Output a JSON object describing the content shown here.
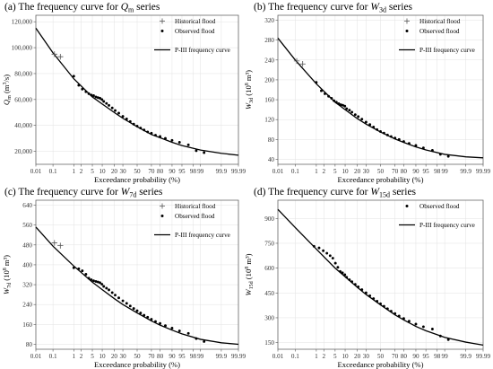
{
  "chart_data": [
    {
      "type": "scatter",
      "title": "(a) The frequency curve for Qₘ series",
      "title_main": "(a) The frequency curve for ",
      "title_sym": "Q",
      "title_sub": "m",
      "title_sup": "",
      "title_tail": " series",
      "xlabel": "Exceedance probability (%)",
      "ylabel_sym": "Q",
      "ylabel_sub": "m",
      "ylabel_tail": " (m",
      "ylabel_sup": "3",
      "ylabel_end": "/s)",
      "ylim": [
        10000,
        125000
      ],
      "yticks": [
        20000,
        40000,
        60000,
        80000,
        100000,
        120000
      ],
      "ytick_labels": [
        "20,000",
        "40,000",
        "60,000",
        "80,000",
        "100,000",
        "120,000"
      ],
      "legend": [
        "Historical flood",
        "Observed flood",
        "P-III frequency curve"
      ],
      "legend_position": "top-right",
      "historical": [
        {
          "p": 0.12,
          "v": 95000
        },
        {
          "p": 0.24,
          "v": 93000
        }
      ],
      "observed": [
        {
          "p": 1.0,
          "v": 78000
        },
        {
          "p": 1.6,
          "v": 71000
        },
        {
          "p": 2.2,
          "v": 68000
        },
        {
          "p": 3.0,
          "v": 66000
        },
        {
          "p": 3.8,
          "v": 64500
        },
        {
          "p": 4.6,
          "v": 63500
        },
        {
          "p": 5.5,
          "v": 63000
        },
        {
          "p": 6.5,
          "v": 62000
        },
        {
          "p": 7.5,
          "v": 61500
        },
        {
          "p": 8.6,
          "v": 61000
        },
        {
          "p": 9.8,
          "v": 60000
        },
        {
          "p": 11,
          "v": 58500
        },
        {
          "p": 13,
          "v": 57000
        },
        {
          "p": 15,
          "v": 55500
        },
        {
          "p": 18,
          "v": 53500
        },
        {
          "p": 21,
          "v": 51500
        },
        {
          "p": 25,
          "v": 49500
        },
        {
          "p": 30,
          "v": 47000
        },
        {
          "p": 35,
          "v": 45000
        },
        {
          "p": 40,
          "v": 43000
        },
        {
          "p": 45,
          "v": 41000
        },
        {
          "p": 50,
          "v": 39500
        },
        {
          "p": 55,
          "v": 38000
        },
        {
          "p": 60,
          "v": 36500
        },
        {
          "p": 65,
          "v": 35000
        },
        {
          "p": 70,
          "v": 34000
        },
        {
          "p": 75,
          "v": 32500
        },
        {
          "p": 80,
          "v": 31500
        },
        {
          "p": 85,
          "v": 30000
        },
        {
          "p": 90,
          "v": 28500
        },
        {
          "p": 94,
          "v": 27000
        },
        {
          "p": 97,
          "v": 25000
        },
        {
          "p": 98.5,
          "v": 20500
        },
        {
          "p": 99.3,
          "v": 19000
        }
      ],
      "curve": [
        {
          "p": 0.01,
          "v": 115000
        },
        {
          "p": 0.1,
          "v": 96000
        },
        {
          "p": 1,
          "v": 76000
        },
        {
          "p": 5,
          "v": 62000
        },
        {
          "p": 10,
          "v": 56500
        },
        {
          "p": 20,
          "v": 50000
        },
        {
          "p": 30,
          "v": 45500
        },
        {
          "p": 50,
          "v": 39000
        },
        {
          "p": 70,
          "v": 33000
        },
        {
          "p": 80,
          "v": 30500
        },
        {
          "p": 90,
          "v": 27000
        },
        {
          "p": 95,
          "v": 24500
        },
        {
          "p": 99,
          "v": 21000
        },
        {
          "p": 99.9,
          "v": 18500
        },
        {
          "p": 99.99,
          "v": 17000
        }
      ]
    },
    {
      "type": "scatter",
      "title": "(b) The frequency curve for W₃d series",
      "title_main": "(b) The frequency curve for ",
      "title_sym": "W",
      "title_sub": "3d",
      "title_tail": " series",
      "xlabel": "Exceedance probability (%)",
      "ylabel_sym": "W",
      "ylabel_sub": "3d",
      "ylabel_tail": " (10",
      "ylabel_sup": "8",
      "ylabel_end": " m³)",
      "ylim": [
        30,
        330
      ],
      "yticks": [
        40,
        80,
        120,
        160,
        200,
        240,
        280,
        320
      ],
      "ytick_labels": [
        "40",
        "80",
        "120",
        "160",
        "200",
        "240",
        "280",
        "320"
      ],
      "legend": [
        "Historical flood",
        "Observed flood",
        "P-III frequency curve"
      ],
      "legend_position": "top-right",
      "historical": [
        {
          "p": 0.12,
          "v": 238
        },
        {
          "p": 0.24,
          "v": 232
        }
      ],
      "observed": [
        {
          "p": 1.0,
          "v": 195
        },
        {
          "p": 1.6,
          "v": 178
        },
        {
          "p": 2.2,
          "v": 172
        },
        {
          "p": 3.0,
          "v": 167
        },
        {
          "p": 3.8,
          "v": 163
        },
        {
          "p": 4.6,
          "v": 158
        },
        {
          "p": 5.5,
          "v": 155
        },
        {
          "p": 6.5,
          "v": 152
        },
        {
          "p": 7.5,
          "v": 150
        },
        {
          "p": 8.6,
          "v": 149
        },
        {
          "p": 9.8,
          "v": 147
        },
        {
          "p": 11,
          "v": 142
        },
        {
          "p": 13,
          "v": 139
        },
        {
          "p": 15,
          "v": 135
        },
        {
          "p": 18,
          "v": 130
        },
        {
          "p": 21,
          "v": 126
        },
        {
          "p": 25,
          "v": 121
        },
        {
          "p": 30,
          "v": 115
        },
        {
          "p": 35,
          "v": 110
        },
        {
          "p": 40,
          "v": 105
        },
        {
          "p": 45,
          "v": 100
        },
        {
          "p": 50,
          "v": 96
        },
        {
          "p": 55,
          "v": 93
        },
        {
          "p": 60,
          "v": 89
        },
        {
          "p": 65,
          "v": 86
        },
        {
          "p": 70,
          "v": 83
        },
        {
          "p": 75,
          "v": 80
        },
        {
          "p": 80,
          "v": 76
        },
        {
          "p": 85,
          "v": 72
        },
        {
          "p": 90,
          "v": 68
        },
        {
          "p": 94,
          "v": 63
        },
        {
          "p": 97,
          "v": 58
        },
        {
          "p": 98.5,
          "v": 50
        },
        {
          "p": 99.3,
          "v": 46
        }
      ],
      "curve": [
        {
          "p": 0.01,
          "v": 284
        },
        {
          "p": 0.1,
          "v": 240
        },
        {
          "p": 1,
          "v": 192
        },
        {
          "p": 5,
          "v": 155
        },
        {
          "p": 10,
          "v": 140
        },
        {
          "p": 20,
          "v": 122
        },
        {
          "p": 30,
          "v": 111
        },
        {
          "p": 50,
          "v": 95
        },
        {
          "p": 70,
          "v": 81
        },
        {
          "p": 80,
          "v": 74
        },
        {
          "p": 90,
          "v": 65
        },
        {
          "p": 95,
          "v": 59
        },
        {
          "p": 99,
          "v": 50
        },
        {
          "p": 99.9,
          "v": 45
        },
        {
          "p": 99.99,
          "v": 43
        }
      ]
    },
    {
      "type": "scatter",
      "title": "(c) The frequency curve for W₇d series",
      "title_main": "(c) The frequency curve for ",
      "title_sym": "W",
      "title_sub": "7d",
      "title_tail": " series",
      "xlabel": "Exceedance probability (%)",
      "ylabel_sym": "W",
      "ylabel_sub": "7d",
      "ylabel_tail": " (10",
      "ylabel_sup": "8",
      "ylabel_end": " m³)",
      "ylim": [
        60,
        660
      ],
      "yticks": [
        80,
        160,
        240,
        320,
        400,
        480,
        560,
        640
      ],
      "ytick_labels": [
        "80",
        "160",
        "240",
        "320",
        "400",
        "480",
        "560",
        "640"
      ],
      "legend": [
        "Historical flood",
        "Observed flood",
        "P-III frequency curve"
      ],
      "legend_position": "top-right",
      "historical": [
        {
          "p": 0.12,
          "v": 488
        },
        {
          "p": 0.24,
          "v": 477
        }
      ],
      "observed": [
        {
          "p": 1.0,
          "v": 388
        },
        {
          "p": 1.6,
          "v": 384
        },
        {
          "p": 2.2,
          "v": 376
        },
        {
          "p": 3.0,
          "v": 362
        },
        {
          "p": 3.8,
          "v": 346
        },
        {
          "p": 4.6,
          "v": 340
        },
        {
          "p": 5.5,
          "v": 336
        },
        {
          "p": 6.5,
          "v": 333
        },
        {
          "p": 7.5,
          "v": 331
        },
        {
          "p": 8.6,
          "v": 328
        },
        {
          "p": 9.8,
          "v": 322
        },
        {
          "p": 11,
          "v": 313
        },
        {
          "p": 13,
          "v": 306
        },
        {
          "p": 15,
          "v": 299
        },
        {
          "p": 18,
          "v": 288
        },
        {
          "p": 21,
          "v": 278
        },
        {
          "p": 25,
          "v": 267
        },
        {
          "p": 30,
          "v": 255
        },
        {
          "p": 35,
          "v": 245
        },
        {
          "p": 40,
          "v": 234
        },
        {
          "p": 45,
          "v": 224
        },
        {
          "p": 50,
          "v": 215
        },
        {
          "p": 55,
          "v": 206
        },
        {
          "p": 60,
          "v": 197
        },
        {
          "p": 65,
          "v": 189
        },
        {
          "p": 70,
          "v": 181
        },
        {
          "p": 75,
          "v": 172
        },
        {
          "p": 80,
          "v": 164
        },
        {
          "p": 85,
          "v": 155
        },
        {
          "p": 90,
          "v": 145
        },
        {
          "p": 94,
          "v": 134
        },
        {
          "p": 97,
          "v": 124
        },
        {
          "p": 98.5,
          "v": 103
        },
        {
          "p": 99.3,
          "v": 91
        }
      ],
      "curve": [
        {
          "p": 0.01,
          "v": 552
        },
        {
          "p": 0.1,
          "v": 475
        },
        {
          "p": 1,
          "v": 395
        },
        {
          "p": 5,
          "v": 330
        },
        {
          "p": 10,
          "v": 300
        },
        {
          "p": 20,
          "v": 264
        },
        {
          "p": 30,
          "v": 240
        },
        {
          "p": 50,
          "v": 206
        },
        {
          "p": 70,
          "v": 174
        },
        {
          "p": 80,
          "v": 157
        },
        {
          "p": 90,
          "v": 137
        },
        {
          "p": 95,
          "v": 122
        },
        {
          "p": 99,
          "v": 100
        },
        {
          "p": 99.9,
          "v": 86
        },
        {
          "p": 99.99,
          "v": 80
        }
      ]
    },
    {
      "type": "scatter",
      "title": "(d) The frequency curve for W₁₅d series",
      "title_main": "(d) The frequency curve for ",
      "title_sym": "W",
      "title_sub": "15d",
      "title_tail": " series",
      "xlabel": "Exceedance probability (%)",
      "ylabel_sym": "W",
      "ylabel_sub": "15d",
      "ylabel_tail": " (10",
      "ylabel_sup": "8",
      "ylabel_end": " m³)",
      "ylim": [
        110,
        1010
      ],
      "yticks": [
        150,
        300,
        450,
        600,
        750,
        900
      ],
      "ytick_labels": [
        "150",
        "300",
        "450",
        "600",
        "750",
        "900"
      ],
      "legend": [
        "Observed flood",
        "P-III frequency curve"
      ],
      "legend_position": "top-right",
      "historical": [],
      "observed": [
        {
          "p": 0.8,
          "v": 732
        },
        {
          "p": 1.3,
          "v": 722
        },
        {
          "p": 1.9,
          "v": 705
        },
        {
          "p": 2.6,
          "v": 690
        },
        {
          "p": 3.4,
          "v": 675
        },
        {
          "p": 4.2,
          "v": 660
        },
        {
          "p": 5.1,
          "v": 630
        },
        {
          "p": 6.1,
          "v": 605
        },
        {
          "p": 7.2,
          "v": 580
        },
        {
          "p": 8.4,
          "v": 572
        },
        {
          "p": 9.8,
          "v": 560
        },
        {
          "p": 11,
          "v": 545
        },
        {
          "p": 13,
          "v": 530
        },
        {
          "p": 15,
          "v": 518
        },
        {
          "p": 18,
          "v": 502
        },
        {
          "p": 21,
          "v": 487
        },
        {
          "p": 25,
          "v": 470
        },
        {
          "p": 30,
          "v": 451
        },
        {
          "p": 35,
          "v": 433
        },
        {
          "p": 40,
          "v": 416
        },
        {
          "p": 45,
          "v": 400
        },
        {
          "p": 50,
          "v": 385
        },
        {
          "p": 55,
          "v": 370
        },
        {
          "p": 60,
          "v": 355
        },
        {
          "p": 65,
          "v": 340
        },
        {
          "p": 70,
          "v": 326
        },
        {
          "p": 75,
          "v": 311
        },
        {
          "p": 80,
          "v": 296
        },
        {
          "p": 85,
          "v": 280
        },
        {
          "p": 90,
          "v": 262
        },
        {
          "p": 94,
          "v": 246
        },
        {
          "p": 97,
          "v": 232
        },
        {
          "p": 98.5,
          "v": 190
        },
        {
          "p": 99.3,
          "v": 168
        }
      ],
      "curve": [
        {
          "p": 0.01,
          "v": 955
        },
        {
          "p": 0.1,
          "v": 845
        },
        {
          "p": 1,
          "v": 715
        },
        {
          "p": 5,
          "v": 600
        },
        {
          "p": 10,
          "v": 548
        },
        {
          "p": 20,
          "v": 484
        },
        {
          "p": 30,
          "v": 441
        },
        {
          "p": 50,
          "v": 378
        },
        {
          "p": 70,
          "v": 318
        },
        {
          "p": 80,
          "v": 287
        },
        {
          "p": 90,
          "v": 248
        },
        {
          "p": 95,
          "v": 222
        },
        {
          "p": 99,
          "v": 182
        },
        {
          "p": 99.9,
          "v": 153
        },
        {
          "p": 99.99,
          "v": 135
        }
      ]
    }
  ],
  "x_tick_values": [
    0.01,
    0.1,
    1,
    2,
    5,
    10,
    20,
    30,
    50,
    70,
    80,
    90,
    95,
    98,
    99,
    99.9,
    99.99
  ],
  "x_tick_labels": [
    "0.01",
    "0.1",
    "1",
    "2",
    "5",
    "10",
    "20",
    "30",
    "50",
    "70",
    "80",
    "90",
    "95",
    "98",
    "99",
    "99.9",
    "99.99"
  ],
  "colors": {
    "curve": "#000000",
    "points": "#000000",
    "grid": "#e2e2e2",
    "frame": "#555555"
  }
}
